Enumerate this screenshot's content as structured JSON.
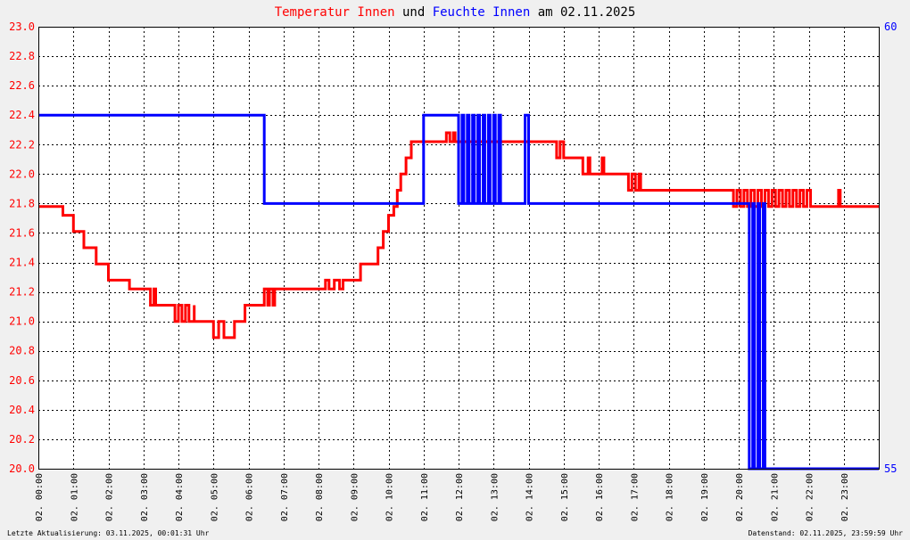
{
  "title": {
    "part1": "Temperatur Innen",
    "part2": " und ",
    "part3": "Feuchte Innen",
    "part4": " am 02.11.2025"
  },
  "footer": {
    "left": "Letzte Aktualisierung: 03.11.2025, 00:01:31 Uhr",
    "right": "Datenstand: 02.11.2025, 23:59:59 Uhr"
  },
  "colors": {
    "temperature": "#ff0000",
    "humidity": "#0000ff",
    "background": "#ffffff",
    "grid": "#000000"
  },
  "chart_data": {
    "type": "line",
    "x_unit": "hours",
    "xlim": [
      0,
      24
    ],
    "x_ticks": [
      {
        "h": 0,
        "label": "02. 00:00"
      },
      {
        "h": 1,
        "label": "02. 01:00"
      },
      {
        "h": 2,
        "label": "02. 02:00"
      },
      {
        "h": 3,
        "label": "02. 03:00"
      },
      {
        "h": 4,
        "label": "02. 04:00"
      },
      {
        "h": 5,
        "label": "02. 05:00"
      },
      {
        "h": 6,
        "label": "02. 06:00"
      },
      {
        "h": 7,
        "label": "02. 07:00"
      },
      {
        "h": 8,
        "label": "02. 08:00"
      },
      {
        "h": 9,
        "label": "02. 09:00"
      },
      {
        "h": 10,
        "label": "02. 10:00"
      },
      {
        "h": 11,
        "label": "02. 11:00"
      },
      {
        "h": 12,
        "label": "02. 12:00"
      },
      {
        "h": 13,
        "label": "02. 13:00"
      },
      {
        "h": 14,
        "label": "02. 14:00"
      },
      {
        "h": 15,
        "label": "02. 15:00"
      },
      {
        "h": 16,
        "label": "02. 16:00"
      },
      {
        "h": 17,
        "label": "02. 17:00"
      },
      {
        "h": 18,
        "label": "02. 18:00"
      },
      {
        "h": 19,
        "label": "02. 19:00"
      },
      {
        "h": 20,
        "label": "02. 20:00"
      },
      {
        "h": 21,
        "label": "02. 21:00"
      },
      {
        "h": 22,
        "label": "02. 22:00"
      },
      {
        "h": 23,
        "label": "02. 23:00"
      }
    ],
    "y_left": {
      "lim": [
        20.0,
        23.0
      ],
      "ticks": [
        "20.0",
        "20.2",
        "20.4",
        "20.6",
        "20.8",
        "21.0",
        "21.2",
        "21.4",
        "21.6",
        "21.8",
        "22.0",
        "22.2",
        "22.4",
        "22.6",
        "22.8",
        "23.0"
      ]
    },
    "y_right": {
      "lim": [
        55,
        60
      ],
      "ticks": [
        "55",
        "60"
      ]
    },
    "grid": true,
    "series": [
      {
        "name": "Temperatur Innen",
        "axis": "left",
        "style": "step",
        "points": [
          [
            0.0,
            21.78
          ],
          [
            0.7,
            21.78
          ],
          [
            0.7,
            21.72
          ],
          [
            1.0,
            21.72
          ],
          [
            1.0,
            21.61
          ],
          [
            1.3,
            21.61
          ],
          [
            1.3,
            21.5
          ],
          [
            1.65,
            21.5
          ],
          [
            1.65,
            21.39
          ],
          [
            2.0,
            21.39
          ],
          [
            2.0,
            21.28
          ],
          [
            2.6,
            21.28
          ],
          [
            2.6,
            21.22
          ],
          [
            3.2,
            21.22
          ],
          [
            3.2,
            21.11
          ],
          [
            3.3,
            21.22
          ],
          [
            3.35,
            21.11
          ],
          [
            3.9,
            21.11
          ],
          [
            3.9,
            21.0
          ],
          [
            4.0,
            21.11
          ],
          [
            4.1,
            21.0
          ],
          [
            4.2,
            21.11
          ],
          [
            4.3,
            21.0
          ],
          [
            4.45,
            21.11
          ],
          [
            4.45,
            21.0
          ],
          [
            5.0,
            21.0
          ],
          [
            5.0,
            20.89
          ],
          [
            5.15,
            20.89
          ],
          [
            5.15,
            21.0
          ],
          [
            5.3,
            21.0
          ],
          [
            5.3,
            20.89
          ],
          [
            5.6,
            20.89
          ],
          [
            5.6,
            21.0
          ],
          [
            5.9,
            21.0
          ],
          [
            5.9,
            21.11
          ],
          [
            6.45,
            21.11
          ],
          [
            6.45,
            21.22
          ],
          [
            6.55,
            21.11
          ],
          [
            6.6,
            21.22
          ],
          [
            6.7,
            21.11
          ],
          [
            6.75,
            21.22
          ],
          [
            8.2,
            21.22
          ],
          [
            8.2,
            21.28
          ],
          [
            8.3,
            21.22
          ],
          [
            8.45,
            21.22
          ],
          [
            8.45,
            21.28
          ],
          [
            8.6,
            21.22
          ],
          [
            8.7,
            21.28
          ],
          [
            9.2,
            21.28
          ],
          [
            9.2,
            21.39
          ],
          [
            9.7,
            21.39
          ],
          [
            9.7,
            21.5
          ],
          [
            9.85,
            21.5
          ],
          [
            9.85,
            21.61
          ],
          [
            10.0,
            21.61
          ],
          [
            10.0,
            21.72
          ],
          [
            10.15,
            21.72
          ],
          [
            10.15,
            21.78
          ],
          [
            10.25,
            21.78
          ],
          [
            10.25,
            21.89
          ],
          [
            10.35,
            21.89
          ],
          [
            10.35,
            22.0
          ],
          [
            10.5,
            22.0
          ],
          [
            10.5,
            22.11
          ],
          [
            10.65,
            22.11
          ],
          [
            10.65,
            22.22
          ],
          [
            11.65,
            22.22
          ],
          [
            11.65,
            22.28
          ],
          [
            11.75,
            22.22
          ],
          [
            11.85,
            22.28
          ],
          [
            11.9,
            22.22
          ],
          [
            14.8,
            22.22
          ],
          [
            14.8,
            22.11
          ],
          [
            14.9,
            22.22
          ],
          [
            15.0,
            22.11
          ],
          [
            15.55,
            22.11
          ],
          [
            15.55,
            22.0
          ],
          [
            15.7,
            22.0
          ],
          [
            15.7,
            22.11
          ],
          [
            15.75,
            22.0
          ],
          [
            16.1,
            22.0
          ],
          [
            16.1,
            22.11
          ],
          [
            16.15,
            22.0
          ],
          [
            16.85,
            22.0
          ],
          [
            16.85,
            21.89
          ],
          [
            16.95,
            22.0
          ],
          [
            17.05,
            21.89
          ],
          [
            17.15,
            22.0
          ],
          [
            17.2,
            21.89
          ],
          [
            19.85,
            21.89
          ],
          [
            19.85,
            21.78
          ],
          [
            19.95,
            21.89
          ],
          [
            20.05,
            21.78
          ],
          [
            20.15,
            21.89
          ],
          [
            20.25,
            21.78
          ],
          [
            20.35,
            21.89
          ],
          [
            20.45,
            21.78
          ],
          [
            20.55,
            21.89
          ],
          [
            20.65,
            21.78
          ],
          [
            20.75,
            21.89
          ],
          [
            20.85,
            21.78
          ],
          [
            20.95,
            21.89
          ],
          [
            21.05,
            21.78
          ],
          [
            21.15,
            21.89
          ],
          [
            21.25,
            21.78
          ],
          [
            21.35,
            21.89
          ],
          [
            21.45,
            21.78
          ],
          [
            21.55,
            21.89
          ],
          [
            21.65,
            21.78
          ],
          [
            21.75,
            21.89
          ],
          [
            21.85,
            21.78
          ],
          [
            21.95,
            21.89
          ],
          [
            22.05,
            21.78
          ],
          [
            22.85,
            21.78
          ],
          [
            22.85,
            21.89
          ],
          [
            22.9,
            21.78
          ],
          [
            24.0,
            21.78
          ]
        ]
      },
      {
        "name": "Feuchte Innen",
        "axis": "right",
        "style": "step",
        "points": [
          [
            0.0,
            59.0
          ],
          [
            6.45,
            59.0
          ],
          [
            6.45,
            58.0
          ],
          [
            11.0,
            58.0
          ],
          [
            11.0,
            59.0
          ],
          [
            12.0,
            59.0
          ],
          [
            12.0,
            58.0
          ],
          [
            12.1,
            59.0
          ],
          [
            12.15,
            58.0
          ],
          [
            12.25,
            59.0
          ],
          [
            12.3,
            58.0
          ],
          [
            12.4,
            59.0
          ],
          [
            12.45,
            58.0
          ],
          [
            12.55,
            59.0
          ],
          [
            12.6,
            58.0
          ],
          [
            12.7,
            59.0
          ],
          [
            12.75,
            58.0
          ],
          [
            12.85,
            59.0
          ],
          [
            12.9,
            58.0
          ],
          [
            13.0,
            59.0
          ],
          [
            13.05,
            58.0
          ],
          [
            13.15,
            59.0
          ],
          [
            13.2,
            58.0
          ],
          [
            13.9,
            58.0
          ],
          [
            13.9,
            59.0
          ],
          [
            14.0,
            59.0
          ],
          [
            14.0,
            58.0
          ],
          [
            20.3,
            58.0
          ],
          [
            20.3,
            55.0
          ],
          [
            20.4,
            58.0
          ],
          [
            20.45,
            55.0
          ],
          [
            20.55,
            58.0
          ],
          [
            20.6,
            55.0
          ],
          [
            20.7,
            58.0
          ],
          [
            20.75,
            55.0
          ],
          [
            24.0,
            55.0
          ]
        ]
      }
    ]
  }
}
